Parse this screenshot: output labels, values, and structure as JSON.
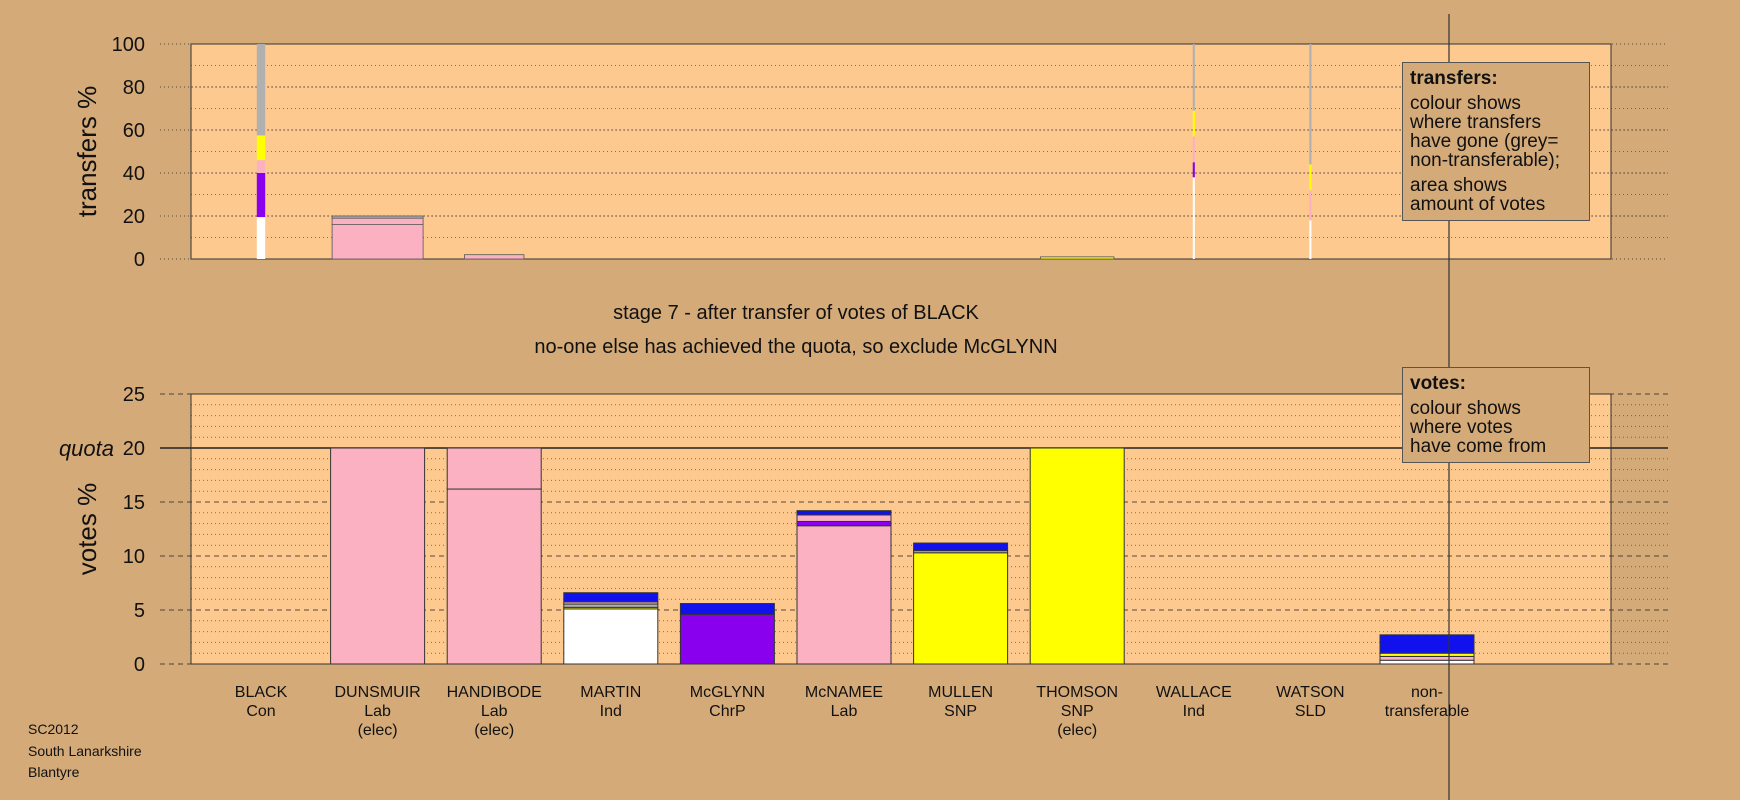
{
  "header": {
    "line1": "stage 7 - after transfer of votes of BLACK",
    "line2": "no-one else has achieved the quota, so exclude McGLYNN"
  },
  "legends": {
    "transfers": {
      "title": "transfers:",
      "paragraphs": [
        [
          "colour shows",
          "where transfers",
          "have gone (grey=",
          "non-transferable);"
        ],
        [
          "area shows",
          "amount of votes"
        ]
      ]
    },
    "votes": {
      "title": "votes:",
      "paragraphs": [
        [
          "colour shows",
          "where votes",
          "have come from"
        ]
      ]
    }
  },
  "footer": [
    "SC2012",
    "South Lanarkshire",
    "Blantyre"
  ],
  "colors": {
    "background": "#d4aa78",
    "plot_bg": "#fec98f",
    "Con": "#ffffff",
    "Lab": "#fcb1c3",
    "Ind": "#b0b0b0",
    "ChrP": "#8800ee",
    "SNP": "#ffff00",
    "SLD": "#1111ee",
    "nontransferable": "#b0b0b0"
  },
  "chart_data": [
    {
      "type": "bar",
      "chart_id": "transfers",
      "ylabel": "transfers %",
      "ylim": [
        0,
        100
      ],
      "yticks": [
        0,
        20,
        40,
        60,
        80,
        100
      ],
      "grid": true,
      "note": "stacked bars; bar width proportional to votes transferred",
      "bars": [
        {
          "candidate": "BLACK",
          "width_votes": 1.2,
          "segments": [
            {
              "party": "Con",
              "value": 19.5
            },
            {
              "party": "ChrP",
              "value": 20.5
            },
            {
              "party": "Lab",
              "value": 6
            },
            {
              "party": "SNP",
              "value": 11.5
            },
            {
              "party": "Ind",
              "value": 42.5
            }
          ]
        },
        {
          "candidate": "DUNSMUIR",
          "width_votes": 13,
          "segments": [
            {
              "party": "Lab",
              "value": 16
            },
            {
              "party": "Lab",
              "value": 3
            },
            {
              "party": "Ind",
              "value": 1
            }
          ]
        },
        {
          "candidate": "HANDIBODE",
          "width_votes": 8.5,
          "segments": [
            {
              "party": "Lab",
              "value": 2
            }
          ]
        },
        {
          "candidate": "THOMSON",
          "width_votes": 10.5,
          "segments": [
            {
              "party": "SNP",
              "value": 1
            }
          ]
        },
        {
          "candidate": "WALLACE",
          "width_votes": 0.3,
          "segments": [
            {
              "party": "Con",
              "value": 38
            },
            {
              "party": "ChrP",
              "value": 7
            },
            {
              "party": "Lab",
              "value": 12
            },
            {
              "party": "SNP",
              "value": 12
            },
            {
              "party": "Ind",
              "value": 31
            }
          ]
        },
        {
          "candidate": "WATSON",
          "width_votes": 0.3,
          "segments": [
            {
              "party": "Con",
              "value": 18
            },
            {
              "party": "Lab",
              "value": 14
            },
            {
              "party": "SNP",
              "value": 12
            },
            {
              "party": "Ind",
              "value": 56
            }
          ]
        }
      ]
    },
    {
      "type": "bar",
      "chart_id": "votes",
      "ylabel": "votes %",
      "ylim": [
        0,
        25
      ],
      "yticks": [
        0,
        5,
        10,
        15,
        20,
        25
      ],
      "grid": true,
      "quota": {
        "label": "quota",
        "value": 20
      },
      "categories": [
        {
          "name": "BLACK",
          "party": "Con",
          "note": ""
        },
        {
          "name": "DUNSMUIR",
          "party": "Lab",
          "note": "(elec)"
        },
        {
          "name": "HANDIBODE",
          "party": "Lab",
          "note": "(elec)"
        },
        {
          "name": "MARTIN",
          "party": "Ind",
          "note": ""
        },
        {
          "name": "McGLYNN",
          "party": "ChrP",
          "note": ""
        },
        {
          "name": "McNAMEE",
          "party": "Lab",
          "note": ""
        },
        {
          "name": "MULLEN",
          "party": "SNP",
          "note": ""
        },
        {
          "name": "THOMSON",
          "party": "SNP",
          "note": "(elec)"
        },
        {
          "name": "WALLACE",
          "party": "Ind",
          "note": ""
        },
        {
          "name": "WATSON",
          "party": "SLD",
          "note": ""
        },
        {
          "name": "non-",
          "party": "transferable",
          "note": ""
        }
      ],
      "stacks": [
        [],
        [
          {
            "color": "Lab",
            "value": 20
          }
        ],
        [
          {
            "color": "Lab",
            "value": 16.2
          },
          {
            "color": "Lab",
            "value": 3.8
          }
        ],
        [
          {
            "color": "Con",
            "value": 5.1
          },
          {
            "color": "SNP",
            "value": 0.15
          },
          {
            "color": "Ind",
            "value": 0.3
          },
          {
            "color": "Lab",
            "value": 0.2
          },
          {
            "color": "SLD",
            "value": 0.85
          }
        ],
        [
          {
            "color": "ChrP",
            "value": 4.6
          },
          {
            "color": "SLD",
            "value": 1.0
          }
        ],
        [
          {
            "color": "Lab",
            "value": 12.8
          },
          {
            "color": "ChrP",
            "value": 0.4
          },
          {
            "color": "Lab",
            "value": 0.6
          },
          {
            "color": "SLD",
            "value": 0.4
          }
        ],
        [
          {
            "color": "SNP",
            "value": 10.3
          },
          {
            "color": "Ind",
            "value": 0.2
          },
          {
            "color": "SLD",
            "value": 0.7
          }
        ],
        [
          {
            "color": "SNP",
            "value": 20
          }
        ],
        [],
        [],
        [
          {
            "color": "Con",
            "value": 0.35
          },
          {
            "color": "Lab",
            "value": 0.35
          },
          {
            "color": "SNP",
            "value": 0.3
          },
          {
            "color": "SLD",
            "value": 1.7
          }
        ]
      ]
    }
  ]
}
